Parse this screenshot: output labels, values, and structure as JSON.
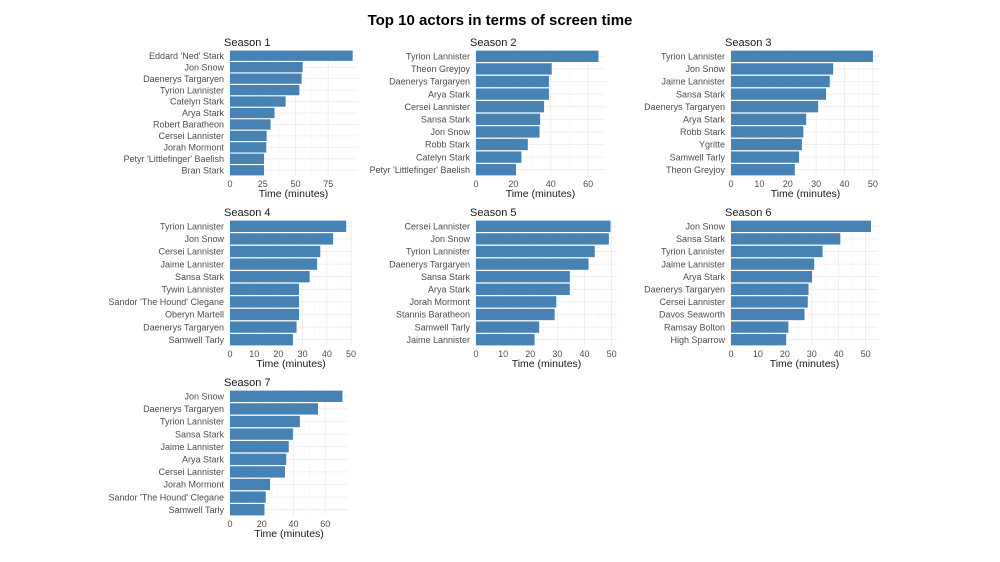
{
  "chart_data": {
    "type": "bar",
    "orientation": "horizontal",
    "title": "Top 10 actors in terms of screen time",
    "bar_color": "#4682B4",
    "grid": true,
    "panels": [
      {
        "title": "Season 1",
        "xlabel": "Time (minutes)",
        "ticks": [
          0,
          25,
          50,
          75
        ],
        "xlim": [
          0,
          97
        ],
        "categories": [
          "Eddard 'Ned' Stark",
          "Jon Snow",
          "Daenerys Targaryen",
          "Tyrion Lannister",
          "Catelyn Stark",
          "Arya Stark",
          "Robert Baratheon",
          "Cersei Lannister",
          "Jorah Mormont",
          "Petyr 'Littlefinger' Baelish",
          "Bran Stark"
        ],
        "values": [
          93.7,
          55.5,
          54.7,
          53,
          42.5,
          34,
          31,
          28,
          27.7,
          26,
          26
        ]
      },
      {
        "title": "Season 2",
        "xlabel": "Time (minutes)",
        "ticks": [
          0,
          20,
          40,
          60
        ],
        "xlim": [
          0,
          69
        ],
        "categories": [
          "Tyrion Lannister",
          "Theon Greyjoy",
          "Daenerys Targaryen",
          "Arya Stark",
          "Cersei Lannister",
          "Sansa Stark",
          "Jon Snow",
          "Robb Stark",
          "Catelyn Stark",
          "Petyr 'Littlefinger' Baelish"
        ],
        "values": [
          65.5,
          40.5,
          39,
          39,
          36.4,
          34.3,
          34,
          27.7,
          24.3,
          21.4
        ]
      },
      {
        "title": "Season 3",
        "xlabel": "Time (minutes)",
        "ticks": [
          0,
          10,
          20,
          30,
          40,
          50
        ],
        "xlim": [
          0,
          52.5
        ],
        "categories": [
          "Tyrion Lannister",
          "Jon Snow",
          "Jaime Lannister",
          "Sansa Stark",
          "Daenerys Targaryen",
          "Arya Stark",
          "Robb Stark",
          "Ygritte",
          "Samwell Tarly",
          "Theon Greyjoy"
        ],
        "values": [
          50,
          36,
          34.8,
          33.5,
          30.7,
          26.5,
          25.5,
          25,
          24,
          22.5
        ]
      },
      {
        "title": "Season 4",
        "xlabel": "Time (minutes)",
        "ticks": [
          0,
          10,
          20,
          30,
          40,
          50
        ],
        "xlim": [
          0,
          50.4
        ],
        "categories": [
          "Tyrion Lannister",
          "Jon Snow",
          "Cersei Lannister",
          "Jaime Lannister",
          "Sansa Stark",
          "Tywin Lannister",
          "Sandor 'The Hound' Clegane",
          "Oberyn Martell",
          "Daenerys Targaryen",
          "Samwell Tarly"
        ],
        "values": [
          48,
          42.6,
          37.3,
          36,
          32.9,
          28.5,
          28.5,
          28.5,
          27.5,
          26
        ]
      },
      {
        "title": "Season 5",
        "xlabel": "Time (minutes)",
        "ticks": [
          0,
          10,
          20,
          30,
          40,
          50
        ],
        "xlim": [
          0,
          52
        ],
        "categories": [
          "Cersei Lannister",
          "Jon Snow",
          "Tyrion Lannister",
          "Daenerys Targaryen",
          "Sansa Stark",
          "Arya Stark",
          "Jorah Mormont",
          "Stannis Baratheon",
          "Samwell Tarly",
          "Jaime Lannister"
        ],
        "values": [
          49.6,
          49,
          43.8,
          41.5,
          34.6,
          34.6,
          29.6,
          29,
          23.3,
          21.6
        ]
      },
      {
        "title": "Season 6",
        "xlabel": "Time (minutes)",
        "ticks": [
          0,
          10,
          20,
          30,
          40,
          50
        ],
        "xlim": [
          0,
          54.6
        ],
        "categories": [
          "Jon Snow",
          "Sansa Stark",
          "Tyrion Lannister",
          "Jaime Lannister",
          "Arya Stark",
          "Daenerys Targaryen",
          "Cersei Lannister",
          "Davos Seaworth",
          "Ramsay Bolton",
          "High Sparrow"
        ],
        "values": [
          52,
          40.6,
          34,
          30.9,
          30.1,
          28.8,
          28.5,
          27.3,
          21.3,
          20.5
        ]
      },
      {
        "title": "Season 7",
        "xlabel": "Time (minutes)",
        "ticks": [
          0,
          20,
          40,
          60
        ],
        "xlim": [
          0,
          74.3
        ],
        "categories": [
          "Jon Snow",
          "Daenerys Targaryen",
          "Tyrion Lannister",
          "Sansa Stark",
          "Jaime Lannister",
          "Arya Stark",
          "Cersei Lannister",
          "Jorah Mormont",
          "Sandor 'The Hound' Clegane",
          "Samwell Tarly"
        ],
        "values": [
          70.8,
          55.4,
          44,
          39.6,
          37,
          35.4,
          34.6,
          25.2,
          22.5,
          21.7
        ]
      }
    ]
  }
}
